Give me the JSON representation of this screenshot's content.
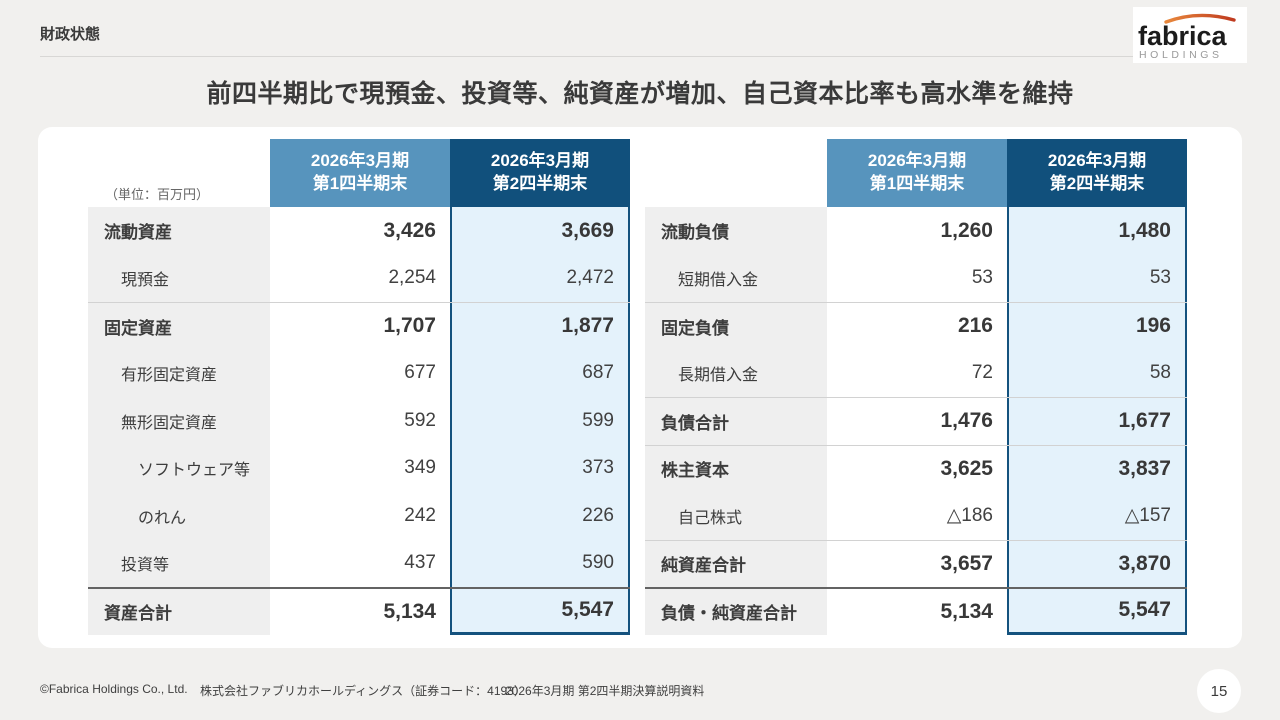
{
  "page": {
    "tag": "財政状態",
    "title": "前四半期比で現預金、投資等、純資産が増加、自己資本比率も高水準を維持",
    "unit_label": "（単位：百万円）",
    "page_number": "15"
  },
  "logo": {
    "name": "fabrica",
    "subtitle": "HOLDINGS",
    "arc_color_left": "#e8883c",
    "arc_color_right": "#bf3a1f",
    "text_color": "#1c1c1c",
    "subtitle_color": "#9a9a9a"
  },
  "colors": {
    "q1_header_bg": "#5794bd",
    "q2_header_bg": "#11507c",
    "q2_cell_bg": "#e4f2fb",
    "q2_border": "#14527e",
    "label_col_bg": "#efefef",
    "page_bg": "#f1f0ee",
    "dark_separator": "#636363"
  },
  "column_headers": {
    "line1": "2026年3月期",
    "q1_line2": "第1四半期末",
    "q2_line2": "第2四半期末"
  },
  "tables": [
    {
      "name": "assets",
      "rows": [
        {
          "label": "流動資産",
          "q1": "3,426",
          "q2": "3,669",
          "bold": true,
          "indent": 0,
          "sep": "none"
        },
        {
          "label": "現預金",
          "q1": "2,254",
          "q2": "2,472",
          "bold": false,
          "indent": 1,
          "sep": "none"
        },
        {
          "label": "固定資産",
          "q1": "1,707",
          "q2": "1,877",
          "bold": true,
          "indent": 0,
          "sep": "thin"
        },
        {
          "label": "有形固定資産",
          "q1": "677",
          "q2": "687",
          "bold": false,
          "indent": 1,
          "sep": "none"
        },
        {
          "label": "無形固定資産",
          "q1": "592",
          "q2": "599",
          "bold": false,
          "indent": 1,
          "sep": "none"
        },
        {
          "label": "ソフトウェア等",
          "q1": "349",
          "q2": "373",
          "bold": false,
          "indent": 2,
          "sep": "none"
        },
        {
          "label": "のれん",
          "q1": "242",
          "q2": "226",
          "bold": false,
          "indent": 2,
          "sep": "none"
        },
        {
          "label": "投資等",
          "q1": "437",
          "q2": "590",
          "bold": false,
          "indent": 1,
          "sep": "none"
        },
        {
          "label": "資産合計",
          "q1": "5,134",
          "q2": "5,547",
          "bold": true,
          "indent": 0,
          "sep": "dark"
        }
      ]
    },
    {
      "name": "liabilities",
      "rows": [
        {
          "label": "流動負債",
          "q1": "1,260",
          "q2": "1,480",
          "bold": true,
          "indent": 0,
          "sep": "none"
        },
        {
          "label": "短期借入金",
          "q1": "53",
          "q2": "53",
          "bold": false,
          "indent": 1,
          "sep": "none"
        },
        {
          "label": "固定負債",
          "q1": "216",
          "q2": "196",
          "bold": true,
          "indent": 0,
          "sep": "thin"
        },
        {
          "label": "長期借入金",
          "q1": "72",
          "q2": "58",
          "bold": false,
          "indent": 1,
          "sep": "none"
        },
        {
          "label": "負債合計",
          "q1": "1,476",
          "q2": "1,677",
          "bold": true,
          "indent": 0,
          "sep": "thin"
        },
        {
          "label": "株主資本",
          "q1": "3,625",
          "q2": "3,837",
          "bold": true,
          "indent": 0,
          "sep": "thin"
        },
        {
          "label": "自己株式",
          "q1": "△186",
          "q2": "△157",
          "bold": false,
          "indent": 1,
          "sep": "none"
        },
        {
          "label": "純資産合計",
          "q1": "3,657",
          "q2": "3,870",
          "bold": true,
          "indent": 0,
          "sep": "thin"
        },
        {
          "label": "負債・純資産合計",
          "q1": "5,134",
          "q2": "5,547",
          "bold": true,
          "indent": 0,
          "sep": "dark"
        }
      ]
    }
  ],
  "footer": {
    "copyright": "©Fabrica Holdings Co., Ltd.",
    "company": "株式会社ファブリカホールディングス（証券コード：4193）",
    "document": "2026年3月期 第2四半期決算説明資料"
  }
}
